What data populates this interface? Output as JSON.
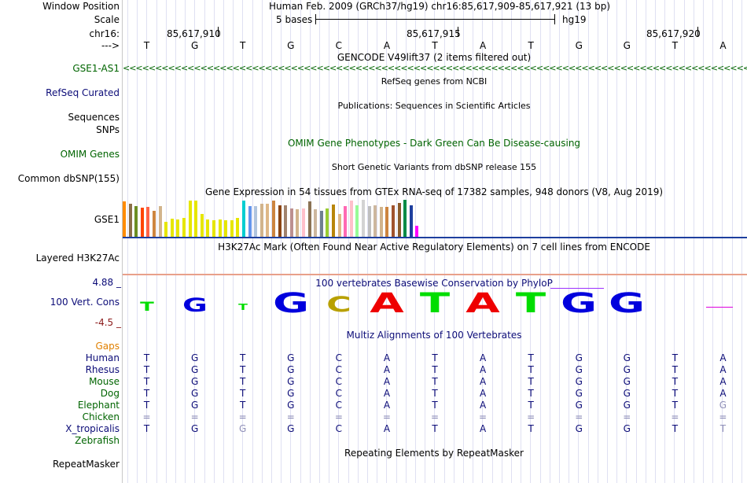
{
  "header": {
    "window_position_label": "Window Position",
    "window_position_value": "Human Feb. 2009 (GRCh37/hg19)   chr16:85,617,909-85,617,921 (13 bp)",
    "scale_label": "Scale",
    "scale_value": "5 bases",
    "scale_assembly": "hg19",
    "chrom_label": "chr16:",
    "arrow_label": "--->",
    "coords": [
      "85,617,910",
      "85,617,915",
      "85,617,920"
    ]
  },
  "bases": [
    "T",
    "G",
    "T",
    "G",
    "C",
    "A",
    "T",
    "A",
    "T",
    "G",
    "G",
    "T",
    "A"
  ],
  "tracks": {
    "gencode": {
      "label": "GSE1-AS1",
      "title": "GENCODE V49lift37 (2 items filtered out)",
      "color": "#006400"
    },
    "refseq": {
      "label": "RefSeq Curated",
      "title": "RefSeq genes from NCBI",
      "color": "#0c0c78"
    },
    "publications": {
      "label": "Sequences",
      "title": "Publications: Sequences in Scientific Articles"
    },
    "snps": {
      "label": "SNPs"
    },
    "omim": {
      "label": "OMIM Genes",
      "title": "OMIM Gene Phenotypes - Dark Green Can Be Disease-causing",
      "color": "#006400"
    },
    "dbsnp": {
      "label": "Common dbSNP(155)",
      "title": "Short Genetic Variants from dbSNP release 155"
    },
    "gtex": {
      "label": "GSE1",
      "title": "Gene Expression in 54 tissues from GTEx RNA-seq of 17382 samples, 948 donors (V8, Aug 2019)"
    },
    "h3k27ac": {
      "label": "Layered H3K27Ac",
      "title": "H3K27Ac Mark (Often Found Near Active Regulatory Elements) on 7 cell lines from ENCODE"
    },
    "cons": {
      "label": "100 Vert. Cons",
      "title": "100 vertebrates Basewise Conservation by PhyloP",
      "max": "4.88 _",
      "min": "-4.5 _"
    },
    "multiz": {
      "title": "Multiz Alignments of 100 Vertebrates"
    },
    "repeatmasker": {
      "label": "RepeatMasker",
      "title": "Repeating Elements by RepeatMasker"
    }
  },
  "gtex_values": [
    0.95,
    0.9,
    0.82,
    0.78,
    0.8,
    0.7,
    0.84,
    0.4,
    0.48,
    0.46,
    0.5,
    0.98,
    0.98,
    0.62,
    0.46,
    0.44,
    0.47,
    0.45,
    0.44,
    0.5,
    0.98,
    0.83,
    0.84,
    0.9,
    0.9,
    0.98,
    0.86,
    0.86,
    0.76,
    0.74,
    0.76,
    0.96,
    0.74,
    0.7,
    0.76,
    0.88,
    0.62,
    0.82,
    0.98,
    0.86,
    1.0,
    0.82,
    0.86,
    0.8,
    0.8,
    0.86,
    0.92,
    1.0,
    0.86,
    0.3
  ],
  "gtex_colors": [
    "#ff8c00",
    "#8b6f47",
    "#6b8e23",
    "#ff4500",
    "#ff6347",
    "#cd853f",
    "#d2b48c",
    "#e6e600",
    "#e6e600",
    "#e6e600",
    "#e6e600",
    "#e6e600",
    "#e6e600",
    "#e6e600",
    "#e6e600",
    "#e6e600",
    "#e6e600",
    "#e6e600",
    "#e6e600",
    "#e6e600",
    "#00ced1",
    "#6495ed",
    "#b0c4de",
    "#d2b48c",
    "#deb887",
    "#cd853f",
    "#8b4513",
    "#a0826d",
    "#bc8f8f",
    "#d2b48c",
    "#ffc0cb",
    "#8b7355",
    "#cdb79e",
    "#708090",
    "#9acd32",
    "#b8860b",
    "#deb887",
    "#ff69b4",
    "#ffc0cb",
    "#98fb98",
    "#d3d3d3",
    "#bfbfbf",
    "#cdb79e",
    "#d2b48c",
    "#cd853f",
    "#a0522d",
    "#8b5a2b",
    "#008b45",
    "#1e3f9e",
    "#ff00ff"
  ],
  "cons_letters": [
    {
      "base": "T",
      "color": "#00dd00",
      "height": 12
    },
    {
      "base": "G",
      "color": "#0000dd",
      "height": 18
    },
    {
      "base": "T",
      "color": "#00dd00",
      "height": 8
    },
    {
      "base": "G",
      "color": "#0000dd",
      "height": 26
    },
    {
      "base": "C",
      "color": "#b8a000",
      "height": 20
    },
    {
      "base": "A",
      "color": "#ee0000",
      "height": 26
    },
    {
      "base": "T",
      "color": "#00dd00",
      "height": 26
    },
    {
      "base": "A",
      "color": "#ee0000",
      "height": 26
    },
    {
      "base": "T",
      "color": "#00dd00",
      "height": 26
    },
    {
      "base": "G",
      "color": "#0000dd",
      "height": 26
    },
    {
      "base": "G",
      "color": "#0000dd",
      "height": 26
    },
    {
      "base": "",
      "color": "#dd00dd",
      "height": 0
    },
    {
      "base": "",
      "color": "#dd00dd",
      "height": 0
    }
  ],
  "alignments": [
    {
      "species": "Gaps",
      "color": "#e08000",
      "row": []
    },
    {
      "species": "Human",
      "color": "#0c0c78",
      "row": [
        "T",
        "G",
        "T",
        "G",
        "C",
        "A",
        "T",
        "A",
        "T",
        "G",
        "G",
        "T",
        "A"
      ]
    },
    {
      "species": "Rhesus",
      "color": "#0c0c78",
      "row": [
        "T",
        "G",
        "T",
        "G",
        "C",
        "A",
        "T",
        "A",
        "T",
        "G",
        "G",
        "T",
        "A"
      ]
    },
    {
      "species": "Mouse",
      "color": "#006400",
      "row": [
        "T",
        "G",
        "T",
        "G",
        "C",
        "A",
        "T",
        "A",
        "T",
        "G",
        "G",
        "T",
        "A"
      ]
    },
    {
      "species": "Dog",
      "color": "#006400",
      "row": [
        "T",
        "G",
        "T",
        "G",
        "C",
        "A",
        "T",
        "A",
        "T",
        "G",
        "G",
        "T",
        "A"
      ]
    },
    {
      "species": "Elephant",
      "color": "#006400",
      "row": [
        "T",
        "G",
        "T",
        "G",
        "C",
        "A",
        "T",
        "A",
        "T",
        "G",
        "G",
        "T",
        "G"
      ]
    },
    {
      "species": "Chicken",
      "color": "#006400",
      "row": [
        "=",
        "=",
        "=",
        "=",
        "=",
        "=",
        "=",
        "=",
        "=",
        "=",
        "=",
        "=",
        "="
      ]
    },
    {
      "species": "X_tropicalis",
      "color": "#0c0c78",
      "row": [
        "T",
        "G",
        "G",
        "G",
        "C",
        "A",
        "T",
        "A",
        "T",
        "G",
        "G",
        "T",
        "T"
      ]
    },
    {
      "species": "Zebrafish",
      "color": "#006400",
      "row": []
    }
  ]
}
